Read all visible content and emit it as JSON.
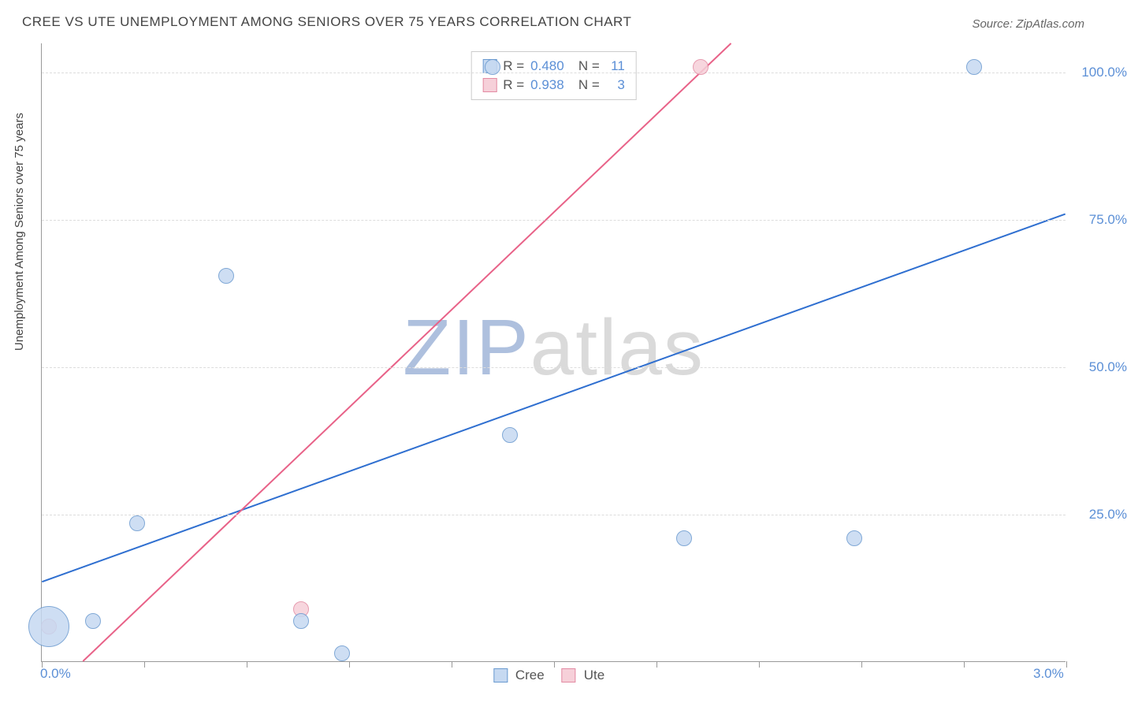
{
  "title": "CREE VS UTE UNEMPLOYMENT AMONG SENIORS OVER 75 YEARS CORRELATION CHART",
  "source": "Source: ZipAtlas.com",
  "y_axis_title": "Unemployment Among Seniors over 75 years",
  "watermark_prefix": "ZIP",
  "watermark_suffix": "atlas",
  "chart": {
    "type": "scatter",
    "background_color": "#ffffff",
    "grid_color": "#dcdcdc",
    "axis_color": "#999999",
    "xlim": [
      0,
      3
    ],
    "ylim": [
      0,
      105
    ],
    "x_tick_positions": [
      0,
      0.3,
      0.6,
      0.9,
      1.2,
      1.5,
      1.8,
      2.1,
      2.4,
      2.7,
      3.0
    ],
    "x_fixed_labels": [
      {
        "x": 0.0,
        "label": "0.0%"
      },
      {
        "x": 3.0,
        "label": "3.0%"
      }
    ],
    "y_ticks": [
      25,
      50,
      75,
      100
    ],
    "y_tick_labels": [
      "25.0%",
      "50.0%",
      "75.0%",
      "100.0%"
    ],
    "series": [
      {
        "name": "Cree",
        "color_fill": "#c6d9f1",
        "color_stroke": "#6a9ad0",
        "points": [
          {
            "x": 0.02,
            "y": 6,
            "r": 26
          },
          {
            "x": 0.15,
            "y": 7,
            "r": 10
          },
          {
            "x": 0.28,
            "y": 23.5,
            "r": 10
          },
          {
            "x": 0.54,
            "y": 65.5,
            "r": 10
          },
          {
            "x": 0.76,
            "y": 7,
            "r": 10
          },
          {
            "x": 0.88,
            "y": 1.5,
            "r": 10
          },
          {
            "x": 1.32,
            "y": 101,
            "r": 10
          },
          {
            "x": 1.37,
            "y": 38.5,
            "r": 10
          },
          {
            "x": 1.88,
            "y": 21,
            "r": 10
          },
          {
            "x": 2.38,
            "y": 21,
            "r": 10
          },
          {
            "x": 2.73,
            "y": 101,
            "r": 10
          }
        ],
        "trend": {
          "x1": 0.0,
          "y1": 13.5,
          "x2": 3.0,
          "y2": 76,
          "stroke": "#2f6fd0",
          "width": 2
        },
        "R": "0.480",
        "N": "11"
      },
      {
        "name": "Ute",
        "color_fill": "#f6d0d9",
        "color_stroke": "#e38ba3",
        "points": [
          {
            "x": 0.02,
            "y": 6,
            "r": 10
          },
          {
            "x": 0.76,
            "y": 9,
            "r": 10
          },
          {
            "x": 1.93,
            "y": 101,
            "r": 10
          }
        ],
        "trend": {
          "x1": 0.12,
          "y1": 0,
          "x2": 2.02,
          "y2": 105,
          "stroke": "#e86288",
          "width": 2
        },
        "R": "0.938",
        "N": "3"
      }
    ]
  },
  "legend_top_label_R": "R =",
  "legend_top_label_N": "N ="
}
